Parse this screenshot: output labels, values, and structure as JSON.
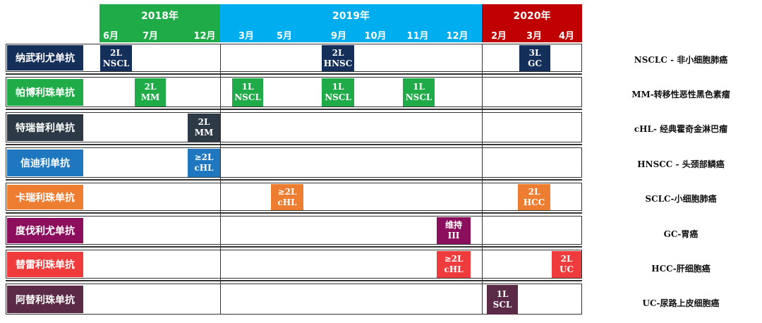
{
  "header": {
    "years": [
      {
        "label": "2018年",
        "color": "#1fac48"
      },
      {
        "label": "2019年",
        "color": "#00aeef"
      },
      {
        "label": "2020年",
        "color": "#c00000"
      }
    ],
    "months": [
      "6月",
      "7月",
      "12月",
      "3月",
      "5月",
      "9月",
      "10月",
      "11月",
      "12月",
      "2月",
      "3月",
      "4月"
    ]
  },
  "drugs": [
    {
      "label": "纳武利尤单抗",
      "color": "#14305a",
      "markers": [
        {
          "line1": "2L",
          "line2": "NSCL"
        },
        {
          "line1": "2L",
          "line2": "HNSC"
        },
        {
          "line1": "3L",
          "line2": "GC"
        }
      ]
    },
    {
      "label": "帕博利珠单抗",
      "color": "#1fac48",
      "markers": [
        {
          "line1": "2L",
          "line2": "MM"
        },
        {
          "line1": "1L",
          "line2": "NSCL"
        },
        {
          "line1": "1L",
          "line2": "NSCL"
        },
        {
          "line1": "1L",
          "line2": "NSCL"
        }
      ]
    },
    {
      "label": "特瑞普利单抗",
      "color": "#2d3a45",
      "markers": [
        {
          "line1": "2L",
          "line2": "MM"
        }
      ]
    },
    {
      "label": "信迪利单抗",
      "color": "#1f77c0",
      "markers": [
        {
          "line1": "≥2L",
          "line2": "cHL"
        }
      ]
    },
    {
      "label": "卡瑞利珠单抗",
      "color": "#ed7d31",
      "markers": [
        {
          "line1": "≥2L",
          "line2": "cHL"
        },
        {
          "line1": "2L",
          "line2": "HCC"
        }
      ]
    },
    {
      "label": "度伐利尤单抗",
      "color": "#8b0f5c",
      "markers": [
        {
          "line1": "维持",
          "line2": "III"
        }
      ]
    },
    {
      "label": "替雷利珠单抗",
      "color": "#ef3b3b",
      "markers": [
        {
          "line1": "≥2L",
          "line2": "cHL"
        },
        {
          "line1": "2L",
          "line2": "UC"
        }
      ]
    },
    {
      "label": "阿替利珠单抗",
      "color": "#5a2a46",
      "markers": [
        {
          "line1": "1L",
          "line2": "SCL"
        }
      ]
    }
  ],
  "legend": [
    "NSCLC - 非小细胞肺癌",
    "MM-转移性恶性黑色素瘤",
    "cHL- 经典霍奇金淋巴瘤",
    "HNSCC - 头颈部鳞癌",
    "SCLC-小细胞肺癌",
    "GC-胃癌",
    "HCC-肝细胞癌",
    "UC-尿路上皮细胞癌"
  ]
}
